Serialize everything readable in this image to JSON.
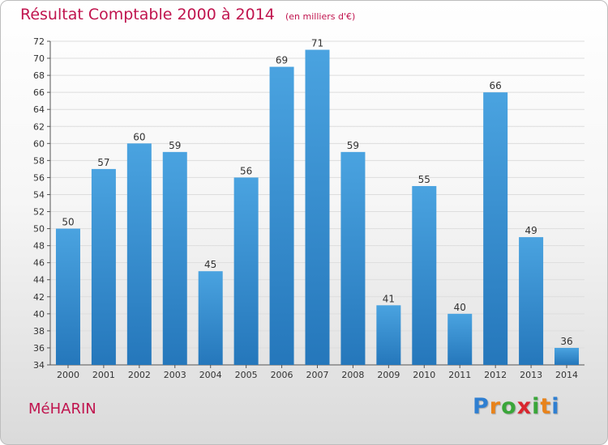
{
  "chart_data": {
    "type": "bar",
    "title": "Résultat Comptable 2000 à 2014",
    "subtitle": "(en milliers d'€)",
    "categories": [
      "2000",
      "2001",
      "2002",
      "2003",
      "2004",
      "2005",
      "2006",
      "2007",
      "2008",
      "2009",
      "2010",
      "2011",
      "2012",
      "2013",
      "2014"
    ],
    "values": [
      50,
      57,
      60,
      59,
      45,
      56,
      69,
      71,
      59,
      41,
      55,
      40,
      66,
      49,
      36
    ],
    "ylim": [
      34,
      72
    ],
    "ytick_step": 2,
    "grid": true,
    "bar_color": "#4aa3e0",
    "bar_color_dark": "#2577bb"
  },
  "commune": "MéHARIN",
  "logo": {
    "text": "Proxiti",
    "letter_colors": [
      "#2f7fd1",
      "#e8831b",
      "#3aa63a",
      "#d9262f",
      "#3aa63a",
      "#e8831b",
      "#2f7fd1"
    ]
  },
  "colors": {
    "title": "#c0144e"
  }
}
